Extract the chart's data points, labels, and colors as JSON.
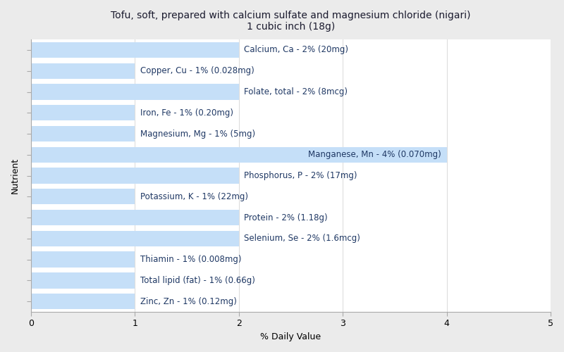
{
  "title_line1": "Tofu, soft, prepared with calcium sulfate and magnesium chloride (nigari)",
  "title_line2": "1 cubic inch (18g)",
  "xlabel": "% Daily Value",
  "ylabel": "Nutrient",
  "nutrients": [
    "Calcium, Ca - 2% (20mg)",
    "Copper, Cu - 1% (0.028mg)",
    "Folate, total - 2% (8mcg)",
    "Iron, Fe - 1% (0.20mg)",
    "Magnesium, Mg - 1% (5mg)",
    "Manganese, Mn - 4% (0.070mg)",
    "Phosphorus, P - 2% (17mg)",
    "Potassium, K - 1% (22mg)",
    "Protein - 2% (1.18g)",
    "Selenium, Se - 2% (1.6mcg)",
    "Thiamin - 1% (0.008mg)",
    "Total lipid (fat) - 1% (0.66g)",
    "Zinc, Zn - 1% (0.12mg)"
  ],
  "values": [
    2,
    1,
    2,
    1,
    1,
    4,
    2,
    1,
    2,
    2,
    1,
    1,
    1
  ],
  "bar_color": "#c5dff8",
  "highlight_color": "#c5dff8",
  "highlight_index": 5,
  "text_color": "#1f3864",
  "highlight_text_color": "#1f3864",
  "xlim": [
    0,
    5
  ],
  "xticks": [
    0,
    1,
    2,
    3,
    4,
    5
  ],
  "background_color": "#ebebeb",
  "plot_bg_color": "#ffffff",
  "title_fontsize": 10,
  "label_fontsize": 8.5,
  "axis_fontsize": 9,
  "bar_height": 0.75
}
